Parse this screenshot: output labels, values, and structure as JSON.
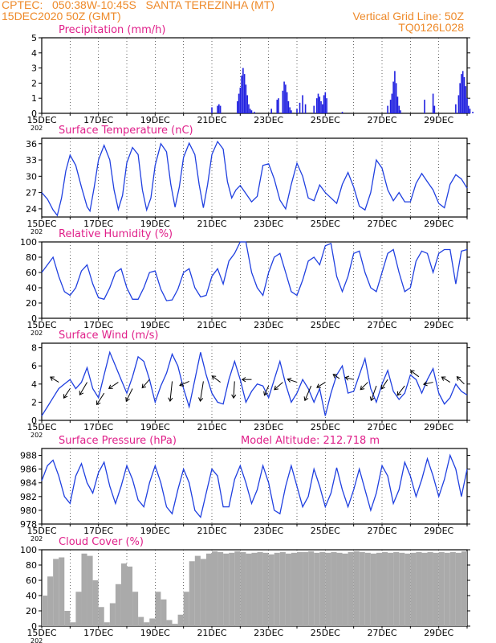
{
  "header": {
    "line1_left": "CPTEC:   050:38W-10:45S   SANTA TEREZINHA (MT)",
    "line2_left": "15DEC2020 50Z (GMT)",
    "line2_right": "Vertical Grid Line: 50Z",
    "line3_right": "TQ0126L028"
  },
  "x_axis": {
    "ticks": [
      "15DEC",
      "17DEC",
      "19DEC",
      "21DEC",
      "23DEC",
      "25DEC",
      "27DEC",
      "29DEC"
    ],
    "year_stub": "202"
  },
  "colors": {
    "line": "#2040e0",
    "bars": "#2020e0",
    "cloud": "#aaaaaa",
    "title": "#e0208a",
    "header": "#ee8a2a"
  },
  "chart_data": [
    {
      "id": "precip",
      "type": "bar",
      "title": "Precipitation (mm/h)",
      "ylim": [
        0,
        5
      ],
      "yticks": [
        0,
        1,
        2,
        3,
        4,
        5
      ],
      "x": [
        6.0,
        6.2,
        6.25,
        6.3,
        6.9,
        6.95,
        7.0,
        7.05,
        7.1,
        7.15,
        7.2,
        7.25,
        7.3,
        7.35,
        7.4,
        7.5,
        8.1,
        8.3,
        8.35,
        8.5,
        8.55,
        8.6,
        8.65,
        8.7,
        8.75,
        8.8,
        9.0,
        9.1,
        9.2,
        9.3,
        9.6,
        9.7,
        9.75,
        9.8,
        9.85,
        9.9,
        9.95,
        10.0,
        10.05,
        10.6,
        12.2,
        12.3,
        12.35,
        12.4,
        12.45,
        12.5,
        12.55,
        12.6,
        12.65,
        13.5,
        13.8,
        13.85,
        14.6,
        14.7,
        14.75,
        14.8,
        14.85,
        14.9,
        14.95,
        15.0,
        15.05,
        15.1,
        15.2
      ],
      "values": [
        0.4,
        0.5,
        0.6,
        0.5,
        0.8,
        1.3,
        1.7,
        2.5,
        3.0,
        2.6,
        1.9,
        1.2,
        0.6,
        0.3,
        0.2,
        0.1,
        0.3,
        0.9,
        1.0,
        1.5,
        2.1,
        1.9,
        1.4,
        0.8,
        0.4,
        0.2,
        0.3,
        0.7,
        1.2,
        0.6,
        0.5,
        1.0,
        1.3,
        1.1,
        0.8,
        0.6,
        1.2,
        1.4,
        1.0,
        0.1,
        0.5,
        0.9,
        1.3,
        2.1,
        2.8,
        2.0,
        1.1,
        0.5,
        0.2,
        0.9,
        1.3,
        0.5,
        0.6,
        1.2,
        2.0,
        2.6,
        2.8,
        2.4,
        1.8,
        1.0,
        0.5,
        0.3,
        0.1
      ]
    },
    {
      "id": "temp",
      "type": "line",
      "title": "Surface Temperature (nC)",
      "ylim": [
        22.5,
        37
      ],
      "yticks": [
        24,
        27,
        30,
        33,
        36
      ],
      "x": [
        0,
        0.2,
        0.4,
        0.55,
        0.7,
        0.85,
        1.0,
        1.2,
        1.4,
        1.6,
        1.7,
        1.85,
        2.0,
        2.2,
        2.4,
        2.55,
        2.7,
        2.85,
        3.0,
        3.2,
        3.4,
        3.55,
        3.7,
        3.85,
        4.0,
        4.2,
        4.4,
        4.55,
        4.7,
        4.85,
        5.0,
        5.2,
        5.4,
        5.55,
        5.7,
        5.85,
        6.0,
        6.2,
        6.4,
        6.55,
        6.7,
        6.85,
        7.0,
        7.2,
        7.4,
        7.6,
        7.8,
        8.0,
        8.2,
        8.4,
        8.6,
        8.8,
        9.0,
        9.2,
        9.4,
        9.6,
        9.8,
        10.0,
        10.2,
        10.4,
        10.6,
        10.8,
        11.0,
        11.2,
        11.4,
        11.6,
        11.8,
        12.0,
        12.2,
        12.4,
        12.6,
        12.8,
        13.0,
        13.2,
        13.4,
        13.6,
        13.8,
        14.0,
        14.2,
        14.4,
        14.6,
        14.8,
        15.0
      ],
      "values": [
        27.0,
        25.8,
        23.8,
        22.8,
        26.0,
        31.0,
        33.9,
        32.0,
        28.0,
        24.4,
        23.6,
        28.0,
        33.0,
        35.7,
        33.0,
        27.5,
        23.9,
        26.5,
        32.5,
        35.3,
        34.0,
        27.5,
        23.8,
        26.0,
        32.0,
        36.0,
        34.5,
        28.5,
        24.3,
        28.0,
        33.5,
        36.1,
        34.0,
        28.5,
        24.2,
        28.5,
        34.0,
        36.4,
        35.0,
        29.0,
        26.0,
        27.5,
        28.3,
        26.8,
        25.3,
        26.3,
        32.0,
        32.3,
        29.5,
        25.6,
        24.0,
        28.5,
        32.4,
        30.0,
        26.0,
        25.5,
        28.4,
        27.0,
        26.0,
        25.0,
        28.5,
        30.7,
        28.0,
        24.5,
        23.8,
        27.0,
        33.0,
        31.5,
        27.5,
        25.5,
        27.0,
        25.3,
        25.3,
        28.7,
        30.5,
        29.0,
        27.5,
        25.0,
        24.2,
        28.5,
        30.3,
        29.5,
        27.8
      ]
    },
    {
      "id": "rh",
      "type": "line",
      "title": "Relative Humidity (%)",
      "ylim": [
        0,
        100
      ],
      "yticks": [
        0,
        20,
        40,
        60,
        80,
        100
      ],
      "x": [
        0,
        0.2,
        0.4,
        0.6,
        0.8,
        1.0,
        1.2,
        1.4,
        1.6,
        1.8,
        2.0,
        2.2,
        2.4,
        2.6,
        2.8,
        3.0,
        3.2,
        3.4,
        3.6,
        3.8,
        4.0,
        4.2,
        4.4,
        4.6,
        4.8,
        5.0,
        5.2,
        5.4,
        5.6,
        5.8,
        6.0,
        6.2,
        6.4,
        6.6,
        6.8,
        7.0,
        7.2,
        7.4,
        7.6,
        7.8,
        8.0,
        8.2,
        8.4,
        8.6,
        8.8,
        9.0,
        9.2,
        9.4,
        9.6,
        9.8,
        10.0,
        10.2,
        10.4,
        10.6,
        10.8,
        11.0,
        11.2,
        11.4,
        11.6,
        11.8,
        12.0,
        12.2,
        12.4,
        12.6,
        12.8,
        13.0,
        13.2,
        13.4,
        13.6,
        13.8,
        14.0,
        14.2,
        14.4,
        14.6,
        14.8,
        15.0
      ],
      "values": [
        60,
        70,
        80,
        55,
        35,
        30,
        40,
        62,
        70,
        45,
        27,
        25,
        40,
        60,
        65,
        40,
        25,
        25,
        40,
        60,
        62,
        38,
        23,
        24,
        38,
        60,
        65,
        40,
        28,
        30,
        55,
        65,
        45,
        75,
        85,
        100,
        100,
        60,
        40,
        30,
        60,
        80,
        85,
        60,
        35,
        30,
        50,
        75,
        80,
        70,
        95,
        98,
        55,
        35,
        55,
        85,
        88,
        60,
        40,
        35,
        60,
        85,
        90,
        60,
        35,
        40,
        75,
        88,
        85,
        60,
        85,
        90,
        90,
        45,
        88,
        90
      ]
    },
    {
      "id": "wind",
      "type": "line",
      "title": "Surface Wind (m/s)",
      "ylim": [
        0,
        8.5
      ],
      "yticks": [
        0,
        2,
        4,
        6,
        8
      ],
      "x": [
        0,
        0.2,
        0.4,
        0.6,
        0.8,
        1.0,
        1.2,
        1.4,
        1.6,
        1.8,
        2.0,
        2.2,
        2.4,
        2.6,
        2.8,
        3.0,
        3.2,
        3.4,
        3.6,
        3.8,
        4.0,
        4.2,
        4.4,
        4.6,
        4.8,
        5.0,
        5.2,
        5.4,
        5.6,
        5.8,
        6.0,
        6.2,
        6.4,
        6.6,
        6.8,
        7.0,
        7.2,
        7.4,
        7.6,
        7.8,
        8.0,
        8.2,
        8.4,
        8.6,
        8.8,
        9.0,
        9.2,
        9.4,
        9.6,
        9.8,
        10.0,
        10.2,
        10.4,
        10.6,
        10.8,
        11.0,
        11.2,
        11.4,
        11.6,
        11.8,
        12.0,
        12.2,
        12.4,
        12.6,
        12.8,
        13.0,
        13.2,
        13.4,
        13.6,
        13.8,
        14.0,
        14.2,
        14.4,
        14.6,
        14.8,
        15.0
      ],
      "values": [
        0.5,
        1.5,
        2.5,
        3.5,
        4.0,
        4.5,
        3.5,
        4.2,
        5.8,
        3.5,
        2.5,
        5.0,
        7.5,
        6.0,
        4.5,
        3.0,
        4.8,
        7.0,
        6.5,
        4.5,
        2.0,
        3.8,
        5.2,
        7.3,
        6.0,
        3.5,
        1.5,
        4.5,
        7.5,
        5.0,
        3.0,
        2.0,
        1.8,
        4.5,
        6.5,
        4.5,
        2.0,
        3.2,
        4.0,
        3.8,
        2.5,
        4.5,
        6.5,
        4.0,
        2.0,
        3.0,
        4.5,
        3.5,
        2.0,
        3.5,
        0.5,
        3.0,
        5.0,
        6.0,
        3.0,
        3.2,
        5.0,
        6.8,
        3.5,
        2.0,
        4.0,
        5.5,
        3.2,
        2.3,
        3.0,
        5.0,
        4.5,
        3.0,
        4.5,
        5.7,
        3.0,
        1.8,
        2.5,
        4.0,
        3.2,
        2.8
      ],
      "vectors": [
        {
          "x": 0.6,
          "y": 4.2,
          "u": -0.4,
          "v": 0.25
        },
        {
          "x": 1.0,
          "y": 3.5,
          "u": -0.3,
          "v": -0.45
        },
        {
          "x": 1.6,
          "y": 4.2,
          "u": -0.35,
          "v": -0.6
        },
        {
          "x": 2.2,
          "y": 3.0,
          "u": -0.35,
          "v": -0.55
        },
        {
          "x": 2.7,
          "y": 4.2,
          "u": -0.45,
          "v": -0.3
        },
        {
          "x": 3.2,
          "y": 3.5,
          "u": -0.3,
          "v": -0.6
        },
        {
          "x": 3.8,
          "y": 4.5,
          "u": -0.35,
          "v": -0.4
        },
        {
          "x": 4.6,
          "y": 4.3,
          "u": -0.1,
          "v": -0.95
        },
        {
          "x": 5.2,
          "y": 4.3,
          "u": -0.45,
          "v": -0.2
        },
        {
          "x": 5.7,
          "y": 4.3,
          "u": -0.15,
          "v": -0.95
        },
        {
          "x": 6.3,
          "y": 4.2,
          "u": -0.4,
          "v": 0.3
        },
        {
          "x": 6.8,
          "y": 4.3,
          "u": -0.05,
          "v": -0.8
        },
        {
          "x": 7.4,
          "y": 4.5,
          "u": -0.45,
          "v": 0.0
        },
        {
          "x": 8.0,
          "y": 3.8,
          "u": -0.2,
          "v": -0.45
        },
        {
          "x": 8.5,
          "y": 4.2,
          "u": -0.4,
          "v": -0.35
        },
        {
          "x": 9.0,
          "y": 4.2,
          "u": -0.45,
          "v": 0.15
        },
        {
          "x": 9.5,
          "y": 3.8,
          "u": -0.3,
          "v": -0.7
        },
        {
          "x": 10.0,
          "y": 4.2,
          "u": -0.4,
          "v": -0.25
        },
        {
          "x": 10.5,
          "y": 4.6,
          "u": -0.3,
          "v": 0.2
        },
        {
          "x": 11.0,
          "y": 4.5,
          "u": -0.4,
          "v": 0.1
        },
        {
          "x": 11.5,
          "y": 4.2,
          "u": -0.35,
          "v": -0.35
        },
        {
          "x": 11.8,
          "y": 3.8,
          "u": -0.25,
          "v": -0.7
        },
        {
          "x": 12.2,
          "y": 4.5,
          "u": -0.3,
          "v": -0.45
        },
        {
          "x": 12.8,
          "y": 3.8,
          "u": -0.35,
          "v": -0.45
        },
        {
          "x": 13.3,
          "y": 4.8,
          "u": -0.4,
          "v": 0.3
        },
        {
          "x": 13.8,
          "y": 4.2,
          "u": -0.45,
          "v": -0.1
        },
        {
          "x": 14.4,
          "y": 4.2,
          "u": -0.4,
          "v": 0.25
        },
        {
          "x": 14.9,
          "y": 4.0,
          "u": -0.35,
          "v": 0.35
        }
      ]
    },
    {
      "id": "pres",
      "type": "line",
      "title": "Surface Pressure (hPa)",
      "annotation": "Model Altitude: 212.718  m",
      "ylim": [
        978,
        989
      ],
      "yticks": [
        978,
        980,
        982,
        984,
        986,
        988
      ],
      "x": [
        0,
        0.2,
        0.4,
        0.6,
        0.8,
        1.0,
        1.2,
        1.4,
        1.6,
        1.8,
        2.0,
        2.2,
        2.4,
        2.6,
        2.8,
        3.0,
        3.2,
        3.4,
        3.6,
        3.8,
        4.0,
        4.2,
        4.4,
        4.6,
        4.8,
        5.0,
        5.2,
        5.4,
        5.6,
        5.8,
        6.0,
        6.2,
        6.4,
        6.6,
        6.8,
        7.0,
        7.2,
        7.4,
        7.6,
        7.8,
        8.0,
        8.2,
        8.4,
        8.6,
        8.8,
        9.0,
        9.2,
        9.4,
        9.6,
        9.8,
        10.0,
        10.2,
        10.4,
        10.6,
        10.8,
        11.0,
        11.2,
        11.4,
        11.6,
        11.8,
        12.0,
        12.2,
        12.4,
        12.6,
        12.8,
        13.0,
        13.2,
        13.4,
        13.6,
        13.8,
        14.0,
        14.2,
        14.4,
        14.6,
        14.8,
        15.0
      ],
      "values": [
        984.3,
        986.5,
        987.3,
        985.0,
        982.0,
        981.0,
        985.0,
        986.8,
        984.0,
        982.5,
        985.5,
        987.0,
        983.5,
        981.0,
        983.5,
        986.5,
        984.5,
        981.5,
        980.5,
        984.0,
        986.5,
        984.0,
        980.5,
        979.5,
        983.0,
        986.0,
        984.0,
        980.0,
        979.0,
        982.5,
        986.0,
        985.0,
        980.5,
        980.5,
        984.5,
        986.5,
        984.0,
        981.0,
        983.0,
        986.5,
        984.0,
        980.0,
        979.5,
        983.5,
        986.5,
        983.5,
        980.5,
        982.0,
        986.0,
        983.5,
        980.5,
        982.5,
        986.2,
        983.0,
        980.5,
        983.0,
        986.0,
        983.0,
        980.0,
        982.5,
        986.5,
        985.0,
        981.0,
        983.0,
        987.0,
        985.0,
        982.0,
        984.5,
        987.5,
        985.0,
        982.0,
        984.5,
        988.0,
        986.0,
        982.0,
        986.0
      ]
    },
    {
      "id": "cloud",
      "type": "bar",
      "title": "Cloud Cover (%)",
      "ylim": [
        0,
        100
      ],
      "yticks": [
        0,
        20,
        40,
        60,
        80,
        100
      ],
      "x": [
        0.2,
        0.4,
        0.6,
        0.8,
        1.0,
        1.2,
        1.4,
        1.6,
        1.8,
        2.0,
        2.2,
        2.4,
        2.6,
        2.8,
        3.0,
        3.2,
        3.4,
        3.6,
        3.8,
        4.0,
        4.2,
        4.4,
        4.6,
        4.8,
        5.0,
        5.2,
        5.4,
        5.6,
        5.8,
        6.0,
        6.2,
        6.4,
        6.6,
        6.8,
        7.0,
        7.2,
        7.4,
        7.6,
        7.8,
        8.0,
        8.2,
        8.4,
        8.6,
        8.8,
        9.0,
        9.2,
        9.4,
        9.6,
        9.8,
        10.0,
        10.2,
        10.4,
        10.6,
        10.8,
        11.0,
        11.2,
        11.4,
        11.6,
        11.8,
        12.0,
        12.2,
        12.4,
        12.6,
        12.8,
        13.0,
        13.2,
        13.4,
        13.6,
        13.8,
        14.0,
        14.2,
        14.4,
        14.6,
        14.8,
        15.0
      ],
      "values": [
        40,
        65,
        88,
        90,
        20,
        5,
        45,
        95,
        92,
        60,
        25,
        5,
        30,
        55,
        82,
        78,
        45,
        12,
        5,
        10,
        45,
        35,
        8,
        3,
        15,
        45,
        85,
        92,
        88,
        95,
        98,
        97,
        95,
        96,
        98,
        97,
        95,
        96,
        97,
        96,
        94,
        96,
        97,
        95,
        96,
        97,
        97,
        98,
        96,
        97,
        96,
        97,
        96,
        95,
        97,
        98,
        97,
        96,
        95,
        96,
        97,
        96,
        97,
        96,
        95,
        96,
        97,
        96,
        97,
        96,
        97,
        96,
        97,
        96,
        98
      ]
    }
  ]
}
